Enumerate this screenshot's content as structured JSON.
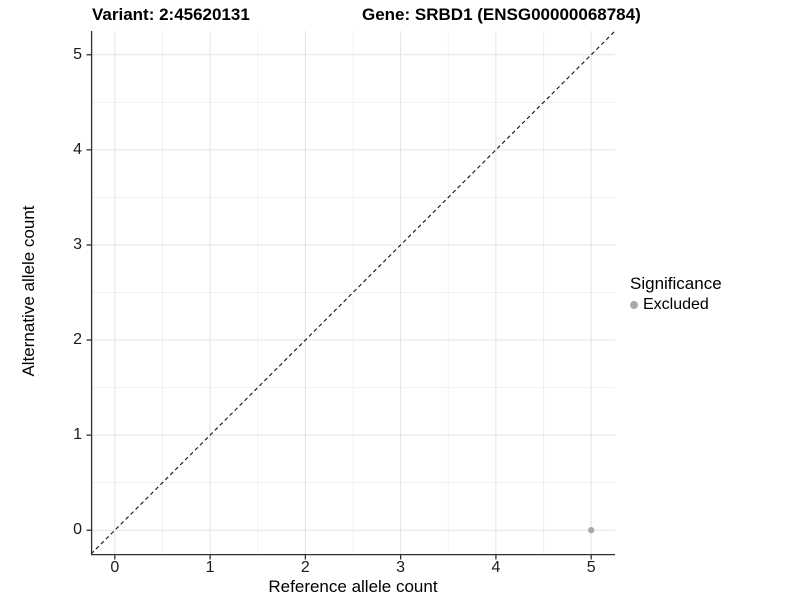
{
  "figure": {
    "variant_title": "Variant: 2:45620131",
    "gene_title": "Gene: SRBD1 (ENSG00000068784)"
  },
  "chart_data": {
    "type": "scatter",
    "title_left": "Variant: 2:45620131",
    "title_right": "Gene: SRBD1 (ENSG00000068784)",
    "xlabel": "Reference allele count",
    "ylabel": "Alternative allele count",
    "xlim": [
      -0.25,
      5.25
    ],
    "ylim": [
      -0.25,
      5.25
    ],
    "x_ticks": [
      0,
      1,
      2,
      3,
      4,
      5
    ],
    "y_ticks": [
      0,
      1,
      2,
      3,
      4,
      5
    ],
    "minor_gridlines_at_halves": true,
    "grid": true,
    "points": [
      {
        "x": 5,
        "y": 0,
        "series": "Excluded"
      }
    ],
    "reference_line": {
      "kind": "identity y=x",
      "style": "dashed",
      "color": "#111111"
    },
    "legend": {
      "title": "Significance",
      "position": "right",
      "items": [
        {
          "label": "Excluded",
          "color": "#aaaaaa"
        }
      ]
    },
    "colors": {
      "background": "#ffffff",
      "grid_major": "#e3e3e3",
      "grid_minor": "#f0f0f0",
      "axis_line": "#2f2f2f",
      "tick_mark": "#2f2f2f",
      "point": "#aaaaaa"
    }
  }
}
